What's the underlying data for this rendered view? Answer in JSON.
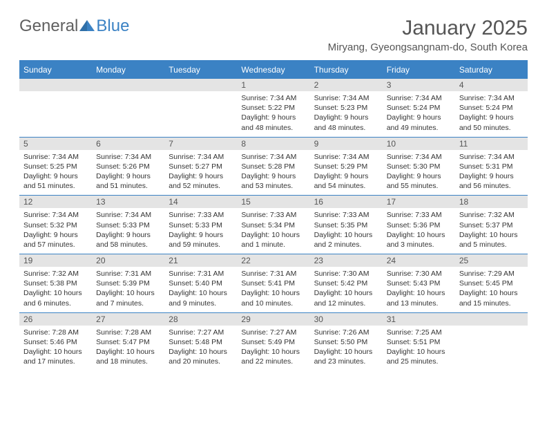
{
  "logo": {
    "text_a": "General",
    "text_b": "Blue"
  },
  "header": {
    "month_title": "January 2025",
    "location": "Miryang, Gyeongsangnam-do, South Korea"
  },
  "colors": {
    "accent": "#3b82c4",
    "header_text": "#555555",
    "dayband": "#e4e4e4",
    "body_text": "#333333",
    "bg": "#ffffff"
  },
  "dow": [
    "Sunday",
    "Monday",
    "Tuesday",
    "Wednesday",
    "Thursday",
    "Friday",
    "Saturday"
  ],
  "weeks": [
    [
      null,
      null,
      null,
      {
        "n": "1",
        "sr": "Sunrise: 7:34 AM",
        "ss": "Sunset: 5:22 PM",
        "dl1": "Daylight: 9 hours",
        "dl2": "and 48 minutes."
      },
      {
        "n": "2",
        "sr": "Sunrise: 7:34 AM",
        "ss": "Sunset: 5:23 PM",
        "dl1": "Daylight: 9 hours",
        "dl2": "and 48 minutes."
      },
      {
        "n": "3",
        "sr": "Sunrise: 7:34 AM",
        "ss": "Sunset: 5:24 PM",
        "dl1": "Daylight: 9 hours",
        "dl2": "and 49 minutes."
      },
      {
        "n": "4",
        "sr": "Sunrise: 7:34 AM",
        "ss": "Sunset: 5:24 PM",
        "dl1": "Daylight: 9 hours",
        "dl2": "and 50 minutes."
      }
    ],
    [
      {
        "n": "5",
        "sr": "Sunrise: 7:34 AM",
        "ss": "Sunset: 5:25 PM",
        "dl1": "Daylight: 9 hours",
        "dl2": "and 51 minutes."
      },
      {
        "n": "6",
        "sr": "Sunrise: 7:34 AM",
        "ss": "Sunset: 5:26 PM",
        "dl1": "Daylight: 9 hours",
        "dl2": "and 51 minutes."
      },
      {
        "n": "7",
        "sr": "Sunrise: 7:34 AM",
        "ss": "Sunset: 5:27 PM",
        "dl1": "Daylight: 9 hours",
        "dl2": "and 52 minutes."
      },
      {
        "n": "8",
        "sr": "Sunrise: 7:34 AM",
        "ss": "Sunset: 5:28 PM",
        "dl1": "Daylight: 9 hours",
        "dl2": "and 53 minutes."
      },
      {
        "n": "9",
        "sr": "Sunrise: 7:34 AM",
        "ss": "Sunset: 5:29 PM",
        "dl1": "Daylight: 9 hours",
        "dl2": "and 54 minutes."
      },
      {
        "n": "10",
        "sr": "Sunrise: 7:34 AM",
        "ss": "Sunset: 5:30 PM",
        "dl1": "Daylight: 9 hours",
        "dl2": "and 55 minutes."
      },
      {
        "n": "11",
        "sr": "Sunrise: 7:34 AM",
        "ss": "Sunset: 5:31 PM",
        "dl1": "Daylight: 9 hours",
        "dl2": "and 56 minutes."
      }
    ],
    [
      {
        "n": "12",
        "sr": "Sunrise: 7:34 AM",
        "ss": "Sunset: 5:32 PM",
        "dl1": "Daylight: 9 hours",
        "dl2": "and 57 minutes."
      },
      {
        "n": "13",
        "sr": "Sunrise: 7:34 AM",
        "ss": "Sunset: 5:33 PM",
        "dl1": "Daylight: 9 hours",
        "dl2": "and 58 minutes."
      },
      {
        "n": "14",
        "sr": "Sunrise: 7:33 AM",
        "ss": "Sunset: 5:33 PM",
        "dl1": "Daylight: 9 hours",
        "dl2": "and 59 minutes."
      },
      {
        "n": "15",
        "sr": "Sunrise: 7:33 AM",
        "ss": "Sunset: 5:34 PM",
        "dl1": "Daylight: 10 hours",
        "dl2": "and 1 minute."
      },
      {
        "n": "16",
        "sr": "Sunrise: 7:33 AM",
        "ss": "Sunset: 5:35 PM",
        "dl1": "Daylight: 10 hours",
        "dl2": "and 2 minutes."
      },
      {
        "n": "17",
        "sr": "Sunrise: 7:33 AM",
        "ss": "Sunset: 5:36 PM",
        "dl1": "Daylight: 10 hours",
        "dl2": "and 3 minutes."
      },
      {
        "n": "18",
        "sr": "Sunrise: 7:32 AM",
        "ss": "Sunset: 5:37 PM",
        "dl1": "Daylight: 10 hours",
        "dl2": "and 5 minutes."
      }
    ],
    [
      {
        "n": "19",
        "sr": "Sunrise: 7:32 AM",
        "ss": "Sunset: 5:38 PM",
        "dl1": "Daylight: 10 hours",
        "dl2": "and 6 minutes."
      },
      {
        "n": "20",
        "sr": "Sunrise: 7:31 AM",
        "ss": "Sunset: 5:39 PM",
        "dl1": "Daylight: 10 hours",
        "dl2": "and 7 minutes."
      },
      {
        "n": "21",
        "sr": "Sunrise: 7:31 AM",
        "ss": "Sunset: 5:40 PM",
        "dl1": "Daylight: 10 hours",
        "dl2": "and 9 minutes."
      },
      {
        "n": "22",
        "sr": "Sunrise: 7:31 AM",
        "ss": "Sunset: 5:41 PM",
        "dl1": "Daylight: 10 hours",
        "dl2": "and 10 minutes."
      },
      {
        "n": "23",
        "sr": "Sunrise: 7:30 AM",
        "ss": "Sunset: 5:42 PM",
        "dl1": "Daylight: 10 hours",
        "dl2": "and 12 minutes."
      },
      {
        "n": "24",
        "sr": "Sunrise: 7:30 AM",
        "ss": "Sunset: 5:43 PM",
        "dl1": "Daylight: 10 hours",
        "dl2": "and 13 minutes."
      },
      {
        "n": "25",
        "sr": "Sunrise: 7:29 AM",
        "ss": "Sunset: 5:45 PM",
        "dl1": "Daylight: 10 hours",
        "dl2": "and 15 minutes."
      }
    ],
    [
      {
        "n": "26",
        "sr": "Sunrise: 7:28 AM",
        "ss": "Sunset: 5:46 PM",
        "dl1": "Daylight: 10 hours",
        "dl2": "and 17 minutes."
      },
      {
        "n": "27",
        "sr": "Sunrise: 7:28 AM",
        "ss": "Sunset: 5:47 PM",
        "dl1": "Daylight: 10 hours",
        "dl2": "and 18 minutes."
      },
      {
        "n": "28",
        "sr": "Sunrise: 7:27 AM",
        "ss": "Sunset: 5:48 PM",
        "dl1": "Daylight: 10 hours",
        "dl2": "and 20 minutes."
      },
      {
        "n": "29",
        "sr": "Sunrise: 7:27 AM",
        "ss": "Sunset: 5:49 PM",
        "dl1": "Daylight: 10 hours",
        "dl2": "and 22 minutes."
      },
      {
        "n": "30",
        "sr": "Sunrise: 7:26 AM",
        "ss": "Sunset: 5:50 PM",
        "dl1": "Daylight: 10 hours",
        "dl2": "and 23 minutes."
      },
      {
        "n": "31",
        "sr": "Sunrise: 7:25 AM",
        "ss": "Sunset: 5:51 PM",
        "dl1": "Daylight: 10 hours",
        "dl2": "and 25 minutes."
      },
      null
    ]
  ]
}
